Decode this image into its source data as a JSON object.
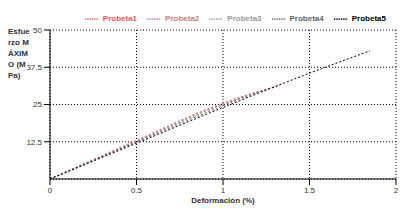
{
  "chart_data": {
    "type": "line",
    "x_label": "Deformación (%)",
    "y_label": "Esfuerzo MÁXIMO (MPa)",
    "xlim": [
      0,
      2
    ],
    "xticks": [
      0,
      0.5,
      1,
      1.5,
      2
    ],
    "ylim": [
      0,
      50
    ],
    "yticks": [
      12.5,
      25,
      37.5,
      50
    ],
    "grid": true,
    "legend": "top",
    "series": [
      {
        "name": "Probeta1",
        "color": "#e05a5a",
        "line_style": "dotted",
        "x": [
          0,
          0.5,
          1,
          1.33
        ],
        "values": [
          0,
          13,
          25.5,
          31.5
        ]
      },
      {
        "name": "Probeta2",
        "color": "#c08080",
        "line_style": "dotted",
        "x": [
          0,
          0.5,
          1,
          1.3
        ],
        "values": [
          0,
          12.8,
          25.2,
          30.8
        ]
      },
      {
        "name": "Probeta3",
        "color": "#999999",
        "line_style": "dotted",
        "x": [
          0,
          0.5,
          1,
          1.25
        ],
        "values": [
          0,
          12.6,
          25,
          30
        ]
      },
      {
        "name": "Probeta4",
        "color": "#666666",
        "line_style": "dotted",
        "x": [
          0,
          0.5,
          1,
          1.2
        ],
        "values": [
          0,
          12.4,
          24.6,
          29.2
        ]
      },
      {
        "name": "Probeta5",
        "color": "#000000",
        "line_style": "dotted",
        "x": [
          0,
          0.5,
          1,
          1.5,
          1.85
        ],
        "values": [
          0,
          12,
          24,
          35.5,
          43
        ]
      }
    ]
  }
}
